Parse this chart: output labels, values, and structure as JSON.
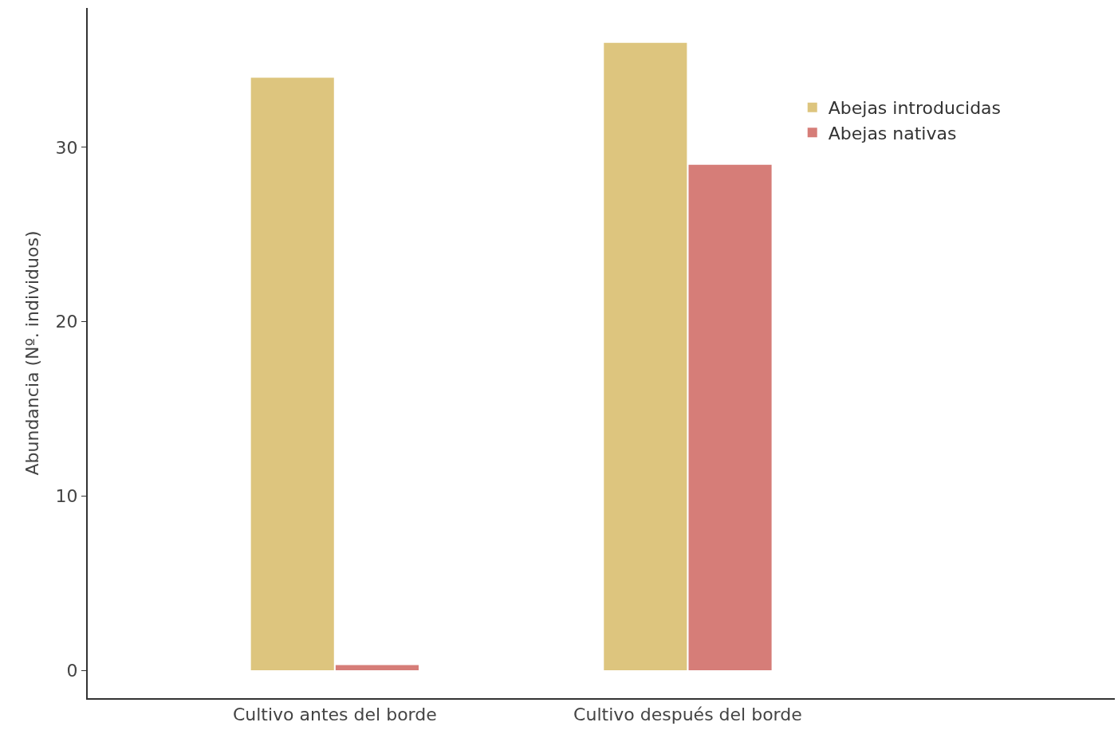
{
  "chart_data": {
    "type": "bar",
    "ylabel": "Abundancia (Nº. individuos)",
    "categories": [
      "Cultivo antes del borde",
      "Cultivo después del borde"
    ],
    "series": [
      {
        "name": "Abejas introducidas",
        "color": "#ddc57e",
        "values": [
          34,
          36
        ]
      },
      {
        "name": "Abejas nativas",
        "color": "#d67d78",
        "values": [
          0.3,
          29
        ]
      }
    ],
    "ylim": [
      -1.6,
      38
    ],
    "yticks": [
      0,
      10,
      20,
      30
    ],
    "legend": "top right"
  }
}
